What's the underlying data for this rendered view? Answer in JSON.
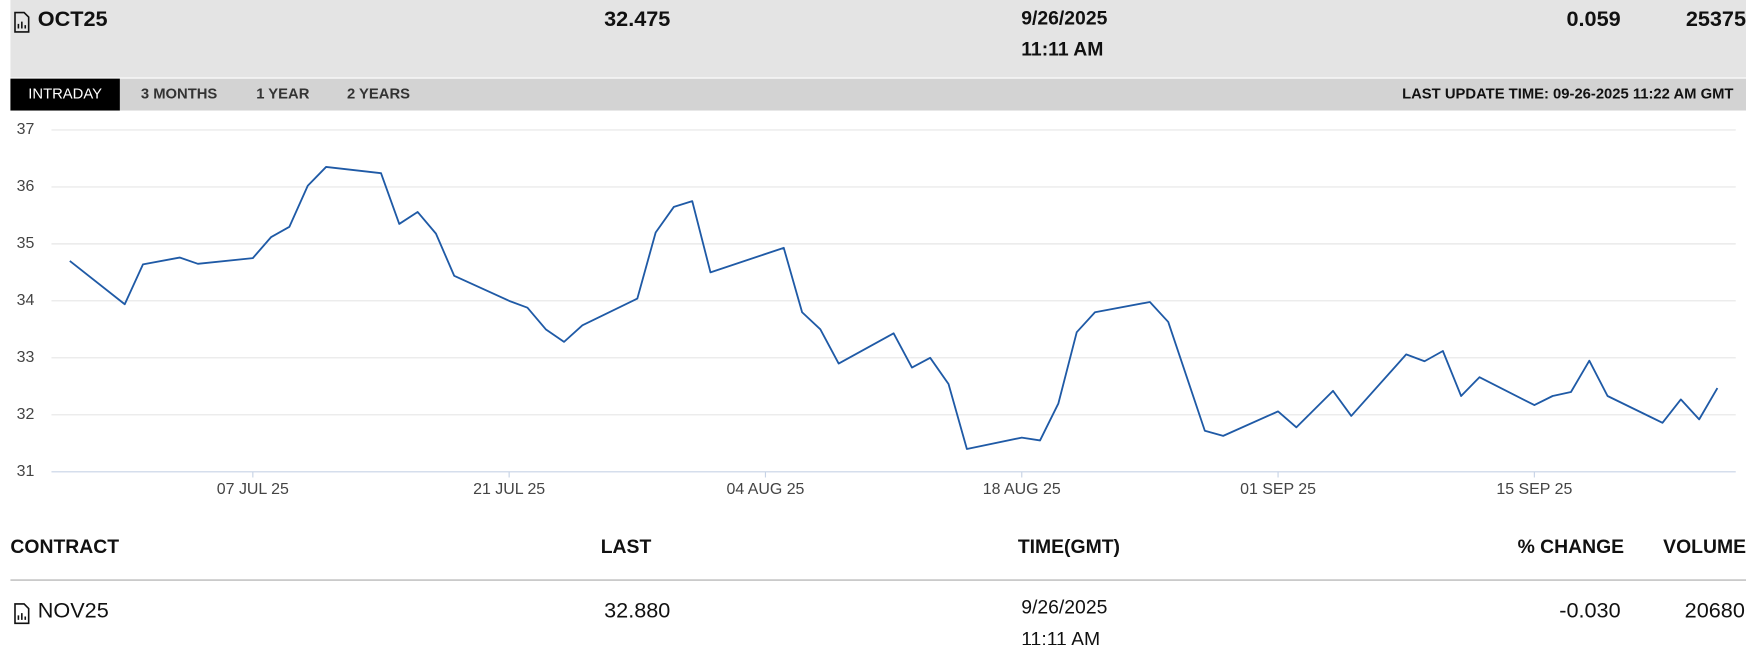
{
  "header": {
    "contract": "OCT25",
    "last": "32.475",
    "date": "9/26/2025",
    "time": "11:11 AM",
    "change": "0.059",
    "volume": "25375"
  },
  "tabs": [
    "INTRADAY",
    "3 MONTHS",
    "1 YEAR",
    "2 YEARS"
  ],
  "last_update": "LAST UPDATE TIME: 09-26-2025 11:22 AM GMT",
  "chart_data": {
    "type": "line",
    "color": "#1f5aa6",
    "grid": true,
    "x": [
      "2025-06-27",
      "2025-06-30",
      "2025-07-01",
      "2025-07-03",
      "2025-07-04",
      "2025-07-07",
      "2025-07-08",
      "2025-07-09",
      "2025-07-10",
      "2025-07-11",
      "2025-07-14",
      "2025-07-15",
      "2025-07-16",
      "2025-07-17",
      "2025-07-18",
      "2025-07-21",
      "2025-07-22",
      "2025-07-23",
      "2025-07-24",
      "2025-07-25",
      "2025-07-28",
      "2025-07-29",
      "2025-07-30",
      "2025-07-31",
      "2025-08-01",
      "2025-08-05",
      "2025-08-06",
      "2025-08-07",
      "2025-08-08",
      "2025-08-11",
      "2025-08-12",
      "2025-08-13",
      "2025-08-14",
      "2025-08-15",
      "2025-08-18",
      "2025-08-19",
      "2025-08-20",
      "2025-08-21",
      "2025-08-22",
      "2025-08-25",
      "2025-08-26",
      "2025-08-28",
      "2025-08-29",
      "2025-09-01",
      "2025-09-02",
      "2025-09-03",
      "2025-09-04",
      "2025-09-05",
      "2025-09-08",
      "2025-09-09",
      "2025-09-10",
      "2025-09-11",
      "2025-09-12",
      "2025-09-15",
      "2025-09-16",
      "2025-09-17",
      "2025-09-18",
      "2025-09-19",
      "2025-09-22",
      "2025-09-23",
      "2025-09-24",
      "2025-09-25"
    ],
    "values": [
      34.7,
      33.94,
      34.64,
      34.76,
      34.65,
      34.75,
      35.12,
      35.3,
      36.02,
      36.35,
      36.24,
      35.35,
      35.56,
      35.18,
      34.44,
      34.0,
      33.88,
      33.5,
      33.28,
      33.57,
      34.04,
      35.2,
      35.65,
      35.75,
      34.5,
      34.93,
      33.8,
      33.5,
      32.9,
      33.43,
      32.83,
      33.0,
      32.54,
      31.4,
      31.6,
      31.55,
      32.2,
      33.45,
      33.8,
      33.98,
      33.63,
      31.72,
      31.63,
      32.06,
      31.78,
      32.1,
      32.42,
      31.98,
      33.06,
      32.94,
      33.12,
      32.33,
      32.66,
      32.17,
      32.33,
      32.4,
      32.95,
      32.33,
      31.86,
      32.27,
      31.92,
      32.47
    ],
    "xlim": [
      "2025-06-26",
      "2025-09-26"
    ],
    "xticks": [
      {
        "value": "2025-07-07",
        "label": "07 JUL 25"
      },
      {
        "value": "2025-07-21",
        "label": "21 JUL 25"
      },
      {
        "value": "2025-08-04",
        "label": "04 AUG 25"
      },
      {
        "value": "2025-08-18",
        "label": "18 AUG 25"
      },
      {
        "value": "2025-09-01",
        "label": "01 SEP 25"
      },
      {
        "value": "2025-09-15",
        "label": "15 SEP 25"
      }
    ],
    "ylim": [
      31,
      37
    ],
    "yticks": [
      31,
      32,
      33,
      34,
      35,
      36,
      37
    ]
  },
  "table": {
    "columns": [
      "CONTRACT",
      "LAST",
      "TIME(GMT)",
      "% CHANGE",
      "VOLUME"
    ],
    "rows": [
      {
        "contract": "NOV25",
        "last": "32.880",
        "date": "9/26/2025",
        "time": "11:11 AM",
        "change": "-0.030",
        "volume": "20680"
      }
    ]
  }
}
